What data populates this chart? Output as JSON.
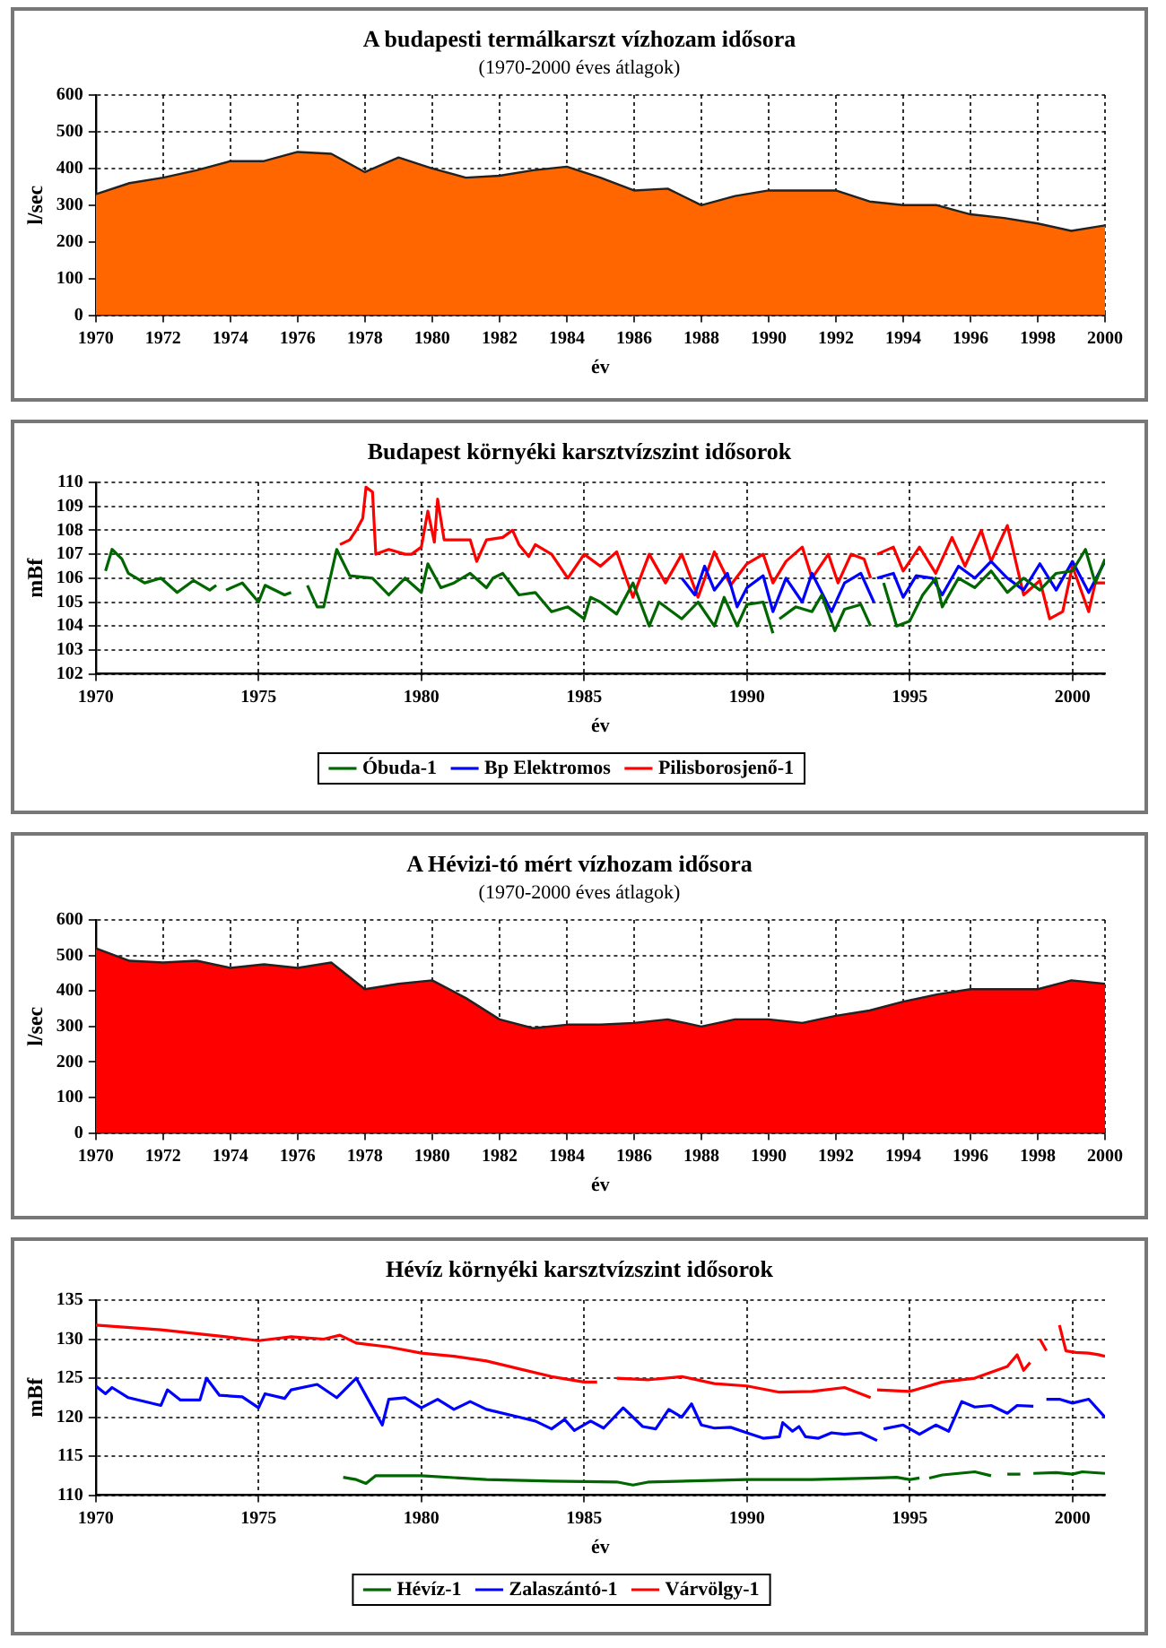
{
  "chart_data": [
    {
      "type": "area",
      "title": "A budapesti termálkarszt vízhozam idősora",
      "subtitle": "(1970-2000 éves átlagok)",
      "xlabel": "év",
      "ylabel": "l/sec",
      "color": "#ff6600",
      "marker": "none",
      "grid": true,
      "x": [
        1970,
        1971,
        1972,
        1973,
        1974,
        1975,
        1976,
        1977,
        1978,
        1979,
        1980,
        1981,
        1982,
        1983,
        1984,
        1985,
        1986,
        1987,
        1988,
        1989,
        1990,
        1991,
        1992,
        1993,
        1994,
        1995,
        1996,
        1997,
        1998,
        1999,
        2000
      ],
      "values": [
        330,
        360,
        375,
        395,
        420,
        420,
        445,
        440,
        390,
        430,
        400,
        375,
        380,
        395,
        405,
        375,
        340,
        345,
        300,
        325,
        340,
        340,
        340,
        310,
        300,
        300,
        275,
        265,
        250,
        230,
        245
      ],
      "xlim": [
        1970,
        2000
      ],
      "xticks": [
        1970,
        1972,
        1974,
        1976,
        1978,
        1980,
        1982,
        1984,
        1986,
        1988,
        1990,
        1992,
        1994,
        1996,
        1998,
        2000
      ],
      "ylim": [
        0,
        600
      ],
      "yticks": [
        0,
        100,
        200,
        300,
        400,
        500,
        600
      ]
    },
    {
      "type": "line",
      "title": "Budapest környéki karsztvízszint idősorok",
      "xlabel": "év",
      "ylabel": "mBf",
      "marker": "none",
      "grid": true,
      "legend": "bottom",
      "xlim": [
        1970,
        2001
      ],
      "xticks": [
        1970,
        1975,
        1980,
        1985,
        1990,
        1995,
        2000
      ],
      "ylim": [
        102,
        110
      ],
      "yticks": [
        102,
        103,
        104,
        105,
        106,
        107,
        108,
        109,
        110
      ],
      "series": [
        {
          "name": "Óbuda-1",
          "color": "#006600",
          "x": [
            1970.3,
            1970.5,
            1970.8,
            1971,
            1971.5,
            1972,
            1972.5,
            1973,
            1973.5,
            1973.7,
            1973.85,
            1974,
            1974.5,
            1975,
            1975.2,
            1975.8,
            1976,
            1976.25,
            1976.5,
            1976.8,
            1977,
            1977.4,
            1977.8,
            1978.5,
            1979,
            1979.5,
            1980,
            1980.2,
            1980.6,
            1981,
            1981.5,
            1982,
            1982.2,
            1982.5,
            1983,
            1983.5,
            1984,
            1984.5,
            1985,
            1985.2,
            1985.5,
            1986,
            1986.5,
            1987,
            1987.3,
            1988,
            1988.5,
            1989,
            1989.3,
            1989.7,
            1990,
            1990.5,
            1990.8,
            1990.9,
            1991,
            1991.5,
            1992,
            1992.3,
            1992.7,
            1993,
            1993.5,
            1993.8,
            1994,
            1994.2,
            1994.6,
            1995,
            1995.4,
            1995.8,
            1996,
            1996.5,
            1997,
            1997.5,
            1998,
            1998.5,
            1999,
            1999.5,
            2000,
            2000.4,
            2000.7,
            2001
          ],
          "values": [
            106.3,
            107.2,
            106.8,
            106.2,
            105.8,
            106.0,
            105.4,
            105.9,
            105.5,
            105.7,
            null,
            105.5,
            105.8,
            105.0,
            105.7,
            105.3,
            105.4,
            null,
            105.7,
            104.8,
            104.8,
            107.2,
            106.1,
            106.0,
            105.3,
            106.0,
            105.4,
            106.6,
            105.6,
            105.8,
            106.2,
            105.6,
            106.0,
            106.2,
            105.3,
            105.4,
            104.6,
            104.8,
            104.3,
            105.2,
            105.0,
            104.5,
            105.8,
            104.0,
            105.0,
            104.3,
            105.0,
            104.0,
            105.2,
            104.0,
            104.9,
            105.0,
            103.7,
            null,
            104.3,
            104.8,
            104.6,
            105.3,
            103.8,
            104.7,
            104.9,
            104.0,
            null,
            105.8,
            104.0,
            104.2,
            105.3,
            106.0,
            104.8,
            106.0,
            105.6,
            106.3,
            105.4,
            106.0,
            105.5,
            106.2,
            106.3,
            107.2,
            105.8,
            106.8
          ]
        },
        {
          "name": "Bp Elektromos",
          "color": "#0000ff",
          "x": [
            1988,
            1988.4,
            1988.7,
            1989,
            1989.4,
            1989.7,
            1990,
            1990.5,
            1990.8,
            1991.2,
            1991.7,
            1992,
            1992.6,
            1993,
            1993.5,
            1993.9,
            1993.95,
            1994,
            1994.5,
            1994.8,
            1995.2,
            1995.7,
            1996,
            1996.5,
            1997,
            1997.5,
            1998,
            1998.5,
            1999,
            1999.5,
            2000,
            2000.5,
            2001
          ],
          "values": [
            106.0,
            105.3,
            106.5,
            105.5,
            106.2,
            104.8,
            105.6,
            106.1,
            104.6,
            106.0,
            105.0,
            106.2,
            104.6,
            105.8,
            106.2,
            105.0,
            null,
            106.0,
            106.2,
            105.2,
            106.1,
            106.0,
            105.3,
            106.5,
            106.0,
            106.7,
            106.0,
            105.5,
            106.6,
            105.5,
            106.7,
            105.4,
            106.7
          ]
        },
        {
          "name": "Pilisborosjenő-1",
          "color": "#ff0000",
          "x": [
            1977.5,
            1977.8,
            1978,
            1978.2,
            1978.3,
            1978.5,
            1978.6,
            1979,
            1979.5,
            1979.7,
            1980,
            1980.2,
            1980.4,
            1980.5,
            1980.7,
            1981.5,
            1981.7,
            1982,
            1982.5,
            1982.8,
            1983,
            1983.3,
            1983.5,
            1984,
            1984.5,
            1985,
            1985.5,
            1986,
            1986.5,
            1987,
            1987.5,
            1988,
            1988.5,
            1989,
            1989.5,
            1990,
            1990.5,
            1990.8,
            1991.2,
            1991.7,
            1992,
            1992.5,
            1992.8,
            1993.2,
            1993.6,
            1993.8,
            1993.9,
            1994,
            1994.5,
            1994.8,
            1995.3,
            1995.8,
            1996.3,
            1996.7,
            1997.2,
            1997.5,
            1998,
            1998.5,
            1999,
            1999.3,
            1999.7,
            2000,
            2000.5,
            2000.7,
            2001
          ],
          "values": [
            107.4,
            107.6,
            108.0,
            108.5,
            109.8,
            109.6,
            107.0,
            107.2,
            107.0,
            107.0,
            107.3,
            108.8,
            107.5,
            109.3,
            107.6,
            107.6,
            106.7,
            107.6,
            107.7,
            108.0,
            107.4,
            106.9,
            107.4,
            107.0,
            106.0,
            107.0,
            106.5,
            107.1,
            105.2,
            107.0,
            105.8,
            107.0,
            105.2,
            107.1,
            105.7,
            106.6,
            107.0,
            105.8,
            106.7,
            107.3,
            106.0,
            107.0,
            105.8,
            107.0,
            106.8,
            106.0,
            null,
            107.0,
            107.3,
            106.3,
            107.3,
            106.2,
            107.7,
            106.5,
            108.0,
            106.7,
            108.2,
            105.3,
            105.9,
            104.3,
            104.6,
            106.5,
            104.6,
            105.8,
            105.8
          ]
        }
      ]
    },
    {
      "type": "area",
      "title": "A Hévizi-tó mért vízhozam idősora",
      "subtitle": "(1970-2000 éves átlagok)",
      "xlabel": "év",
      "ylabel": "l/sec",
      "color": "#ff0000",
      "marker": "none",
      "grid": true,
      "x": [
        1970,
        1971,
        1972,
        1973,
        1974,
        1975,
        1976,
        1977,
        1978,
        1979,
        1980,
        1981,
        1982,
        1983,
        1984,
        1985,
        1986,
        1987,
        1988,
        1989,
        1990,
        1991,
        1992,
        1993,
        1994,
        1995,
        1996,
        1997,
        1998,
        1999,
        2000
      ],
      "values": [
        520,
        485,
        480,
        485,
        465,
        475,
        465,
        480,
        405,
        420,
        430,
        380,
        320,
        295,
        305,
        305,
        310,
        320,
        300,
        320,
        320,
        310,
        330,
        345,
        370,
        390,
        405,
        405,
        405,
        430,
        420
      ],
      "xlim": [
        1970,
        2000
      ],
      "xticks": [
        1970,
        1972,
        1974,
        1976,
        1978,
        1980,
        1982,
        1984,
        1986,
        1988,
        1990,
        1992,
        1994,
        1996,
        1998,
        2000
      ],
      "ylim": [
        0,
        600
      ],
      "yticks": [
        0,
        100,
        200,
        300,
        400,
        500,
        600
      ]
    },
    {
      "type": "line",
      "title": "Hévíz környéki karsztvízszint idősorok",
      "xlabel": "év",
      "ylabel": "mBf",
      "marker": "none",
      "grid": true,
      "legend": "bottom",
      "xlim": [
        1970,
        2001
      ],
      "xticks": [
        1970,
        1975,
        1980,
        1985,
        1990,
        1995,
        2000
      ],
      "ylim": [
        110,
        135
      ],
      "yticks": [
        110,
        115,
        120,
        125,
        130,
        135
      ],
      "series": [
        {
          "name": "Hévíz-1",
          "color": "#006600",
          "x": [
            1977.6,
            1978,
            1978.3,
            1978.6,
            1980,
            1982,
            1984,
            1986,
            1986.5,
            1987,
            1990,
            1992,
            1994,
            1994.6,
            1995,
            1995.3,
            1995.45,
            1995.6,
            1996,
            1997,
            1997.5,
            1997.75,
            1998,
            1998.4,
            1998.6,
            1998.8,
            1999.5,
            2000,
            2000.3,
            2001
          ],
          "values": [
            112.3,
            112.0,
            111.5,
            112.5,
            112.5,
            112.0,
            111.8,
            111.7,
            111.3,
            111.7,
            112.0,
            112.0,
            112.2,
            112.3,
            112.0,
            112.2,
            null,
            112.2,
            112.6,
            113.0,
            112.5,
            null,
            112.7,
            112.7,
            null,
            112.8,
            112.9,
            112.7,
            113.0,
            112.8
          ]
        },
        {
          "name": "Zalaszántó-1",
          "color": "#0000ff",
          "x": [
            1970,
            1970.3,
            1970.5,
            1971,
            1972,
            1972.2,
            1972.6,
            1973.2,
            1973.4,
            1973.8,
            1974.5,
            1975,
            1975.2,
            1975.8,
            1976,
            1976.8,
            1977.4,
            1978,
            1978.4,
            1978.8,
            1979,
            1979.5,
            1980,
            1980.5,
            1981,
            1981.5,
            1982,
            1983,
            1983.5,
            1984,
            1984.4,
            1984.7,
            1985.2,
            1985.6,
            1986.2,
            1986.8,
            1987.2,
            1987.6,
            1988,
            1988.3,
            1988.6,
            1989,
            1989.5,
            1990,
            1990.5,
            1991,
            1991.1,
            1991.4,
            1991.6,
            1991.8,
            1992.2,
            1992.6,
            1993,
            1993.5,
            1994,
            1994.1,
            1994.2,
            1994.8,
            1995.3,
            1995.8,
            1996.2,
            1996.6,
            1997,
            1997.5,
            1998,
            1998.3,
            1998.8,
            1999,
            1999.2,
            1999.6,
            2000,
            2000.5,
            2001
          ],
          "values": [
            124.0,
            123.0,
            123.8,
            122.5,
            121.5,
            123.5,
            122.2,
            122.2,
            125.0,
            122.8,
            122.6,
            121.2,
            123.0,
            122.4,
            123.5,
            124.2,
            122.5,
            125.0,
            122.0,
            119.0,
            122.3,
            122.5,
            121.2,
            122.3,
            121.0,
            122.0,
            121.0,
            120.0,
            119.5,
            118.5,
            119.7,
            118.3,
            119.5,
            118.6,
            121.2,
            118.8,
            118.5,
            121.0,
            120.0,
            121.7,
            119.0,
            118.6,
            118.7,
            118.0,
            117.3,
            117.5,
            119.3,
            118.2,
            118.8,
            117.5,
            117.3,
            118.0,
            117.8,
            118.0,
            117.0,
            null,
            118.5,
            119.0,
            117.8,
            119.0,
            118.2,
            122.0,
            121.3,
            121.5,
            120.5,
            121.5,
            121.4,
            null,
            122.3,
            122.3,
            121.8,
            122.3,
            120.0
          ]
        },
        {
          "name": "Várvölgy-1",
          "color": "#ff0000",
          "x": [
            1970,
            1972,
            1974,
            1975,
            1976,
            1977,
            1977.5,
            1978,
            1979,
            1980,
            1981,
            1982,
            1983,
            1984,
            1985,
            1985.4,
            1985.7,
            1986,
            1987,
            1988,
            1989,
            1990,
            1991,
            1992,
            1993,
            1993.8,
            1993.9,
            1994,
            1995,
            1996,
            1997,
            1998,
            1998.3,
            1998.5,
            1998.7,
            1998.85,
            1999,
            1999.2,
            1999.4,
            1999.6,
            1999.8,
            2000.1,
            2000.5,
            2000.8,
            2001
          ],
          "values": [
            131.8,
            131.2,
            130.3,
            129.8,
            130.3,
            130.0,
            130.5,
            129.5,
            129.0,
            128.2,
            127.8,
            127.2,
            126.2,
            125.2,
            124.5,
            124.5,
            null,
            125.0,
            124.8,
            125.2,
            124.3,
            124.0,
            123.2,
            123.3,
            123.8,
            122.5,
            null,
            123.5,
            123.3,
            124.5,
            125.0,
            126.5,
            128.0,
            126.0,
            127.0,
            null,
            130.0,
            128.5,
            null,
            131.8,
            128.5,
            128.3,
            128.2,
            128.0,
            127.8
          ]
        }
      ]
    }
  ]
}
